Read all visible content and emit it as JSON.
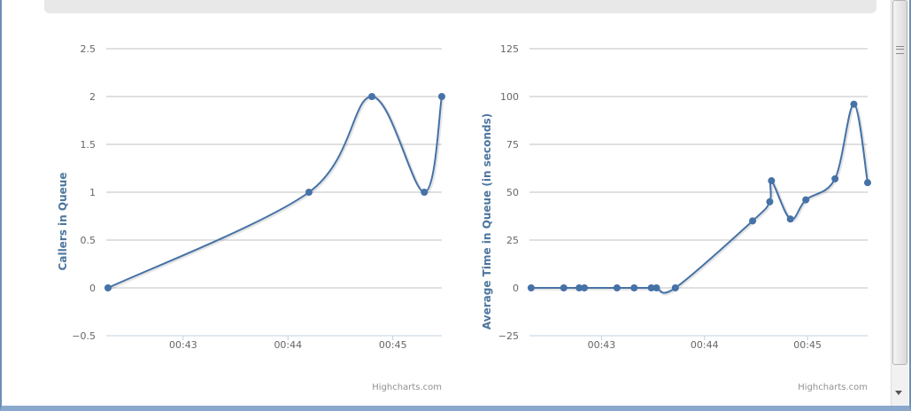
{
  "chart_data": [
    {
      "type": "line",
      "ylabel": "Callers in Queue",
      "ylim": [
        -0.5,
        2.5
      ],
      "yticks": [
        -0.5,
        0,
        0.5,
        1,
        1.5,
        2,
        2.5
      ],
      "ytick_labels": [
        "−0.5",
        "0",
        "0.5",
        "1",
        "1.5",
        "2",
        "2.5"
      ],
      "xlim": [
        "00:42:16",
        "00:45:28"
      ],
      "xticks": [
        "00:43:00",
        "00:44:00",
        "00:45:00"
      ],
      "xtick_labels": [
        "00:43",
        "00:44",
        "00:45"
      ],
      "grid": true,
      "series_color": "#4572a7",
      "x": [
        "00:42:17",
        "00:44:12",
        "00:44:48",
        "00:45:18",
        "00:45:28"
      ],
      "y": [
        0,
        1,
        2,
        1,
        2
      ],
      "credits": "Highcharts.com"
    },
    {
      "type": "line",
      "ylabel": "Average Time in Queue (in seconds)",
      "ylim": [
        -25,
        125
      ],
      "yticks": [
        -25,
        0,
        25,
        50,
        75,
        100,
        125
      ],
      "ytick_labels": [
        "−25",
        "0",
        "25",
        "50",
        "75",
        "100",
        "125"
      ],
      "xlim": [
        "00:42:18",
        "00:45:35"
      ],
      "xticks": [
        "00:43:00",
        "00:44:00",
        "00:45:00"
      ],
      "xtick_labels": [
        "00:43",
        "00:44",
        "00:45"
      ],
      "grid": true,
      "series_color": "#4572a7",
      "x": [
        "00:42:19",
        "00:42:38",
        "00:42:47",
        "00:42:50",
        "00:43:09",
        "00:43:19",
        "00:43:29",
        "00:43:32",
        "00:43:43",
        "00:44:28",
        "00:44:38",
        "00:44:39",
        "00:44:50",
        "00:44:59",
        "00:45:16",
        "00:45:27",
        "00:45:35"
      ],
      "y": [
        0,
        0,
        0,
        0,
        0,
        0,
        0,
        0,
        0,
        35,
        45,
        56,
        36,
        46,
        57,
        96,
        55
      ],
      "credits": "Highcharts.com"
    }
  ]
}
